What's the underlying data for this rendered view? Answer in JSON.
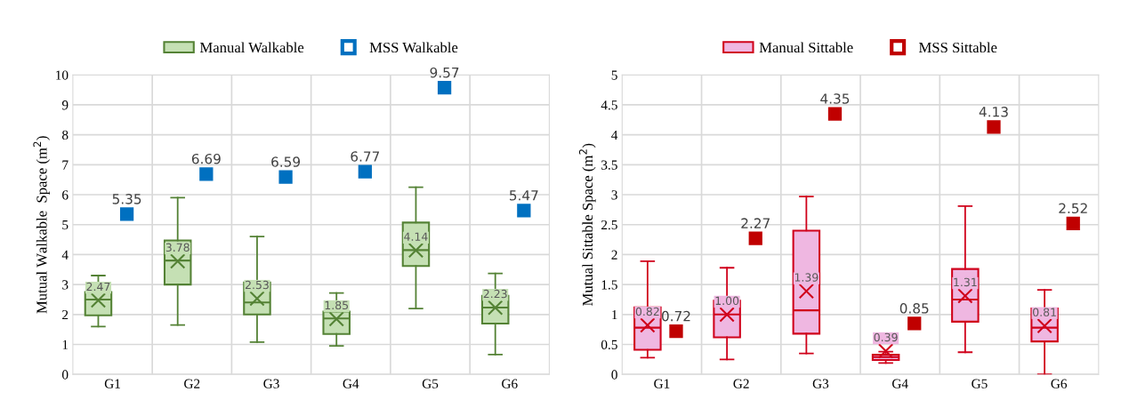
{
  "chart_data": [
    {
      "type": "box",
      "categories": [
        "G1",
        "G2",
        "G3",
        "G4",
        "G5",
        "G6"
      ],
      "ylabel": "Mutual Walkable  Space (m$^{2}$)",
      "ylim": [
        0,
        10
      ],
      "yticks": [
        0,
        1,
        2,
        3,
        4,
        5,
        6,
        7,
        8,
        9,
        10
      ],
      "grid": true,
      "legend": "top",
      "series": [
        {
          "name": "Manual Walkable",
          "type": "box",
          "color": "#548235",
          "colors": [
            "#c5e0b4",
            "#c5e0b4",
            "#c5e0b4",
            "#c5e0b4",
            "#c5e0b4",
            "#c5e0b4"
          ],
          "value_labels": [
            "2.47",
            "3.78",
            "2.53",
            "1.85",
            "4.14",
            "2.23"
          ],
          "boxes": [
            {
              "low": 1.6,
              "q1": 1.97,
              "median": 2.5,
              "q3": 2.75,
              "high": 3.3,
              "mean": 2.47
            },
            {
              "low": 1.65,
              "q1": 3.0,
              "median": 3.8,
              "q3": 4.47,
              "high": 5.9,
              "mean": 3.78
            },
            {
              "low": 1.08,
              "q1": 2.0,
              "median": 2.4,
              "q3": 3.07,
              "high": 4.6,
              "mean": 2.53
            },
            {
              "low": 0.95,
              "q1": 1.35,
              "median": 1.87,
              "q3": 2.1,
              "high": 2.72,
              "mean": 1.85
            },
            {
              "low": 2.2,
              "q1": 3.62,
              "median": 4.15,
              "q3": 5.07,
              "high": 6.25,
              "mean": 4.14
            },
            {
              "low": 0.66,
              "q1": 1.7,
              "median": 2.23,
              "q3": 2.62,
              "high": 3.37,
              "mean": 2.23
            }
          ]
        },
        {
          "name": "MSS Walkable",
          "type": "scatter",
          "marker": "square",
          "color": "#0070c0",
          "data_labels": true,
          "values": [
            5.35,
            6.69,
            6.59,
            6.77,
            9.57,
            5.47
          ]
        }
      ]
    },
    {
      "type": "box",
      "categories": [
        "G1",
        "G2",
        "G3",
        "G4",
        "G5",
        "G6"
      ],
      "ylabel": "Mutual Sittable Space (m$^{2}$)",
      "ylim": [
        0,
        5
      ],
      "yticks": [
        0,
        0.5,
        1,
        1.5,
        2,
        2.5,
        3,
        3.5,
        4,
        4.5,
        5
      ],
      "grid": true,
      "legend": "top",
      "series": [
        {
          "name": "Manual Sittable",
          "type": "box",
          "color": "#d0021b",
          "colors": [
            "#efb7e1",
            "#efb7e1",
            "#efb7e1",
            "#efb7e1",
            "#efb7e1",
            "#efb7e1"
          ],
          "value_labels": [
            "0.82",
            "1.00",
            "1.39",
            "0.39",
            "1.31",
            "0.81"
          ],
          "boxes": [
            {
              "low": 0.28,
              "q1": 0.41,
              "median": 0.78,
              "q3": 1.12,
              "high": 1.89,
              "mean": 0.82
            },
            {
              "low": 0.25,
              "q1": 0.62,
              "median": 1.0,
              "q3": 1.23,
              "high": 1.78,
              "mean": 1.0
            },
            {
              "low": 0.35,
              "q1": 0.68,
              "median": 1.07,
              "q3": 2.4,
              "high": 2.97,
              "mean": 1.39
            },
            {
              "low": 0.19,
              "q1": 0.24,
              "median": 0.29,
              "q3": 0.33,
              "high": 0.38,
              "mean": 0.39
            },
            {
              "low": 0.37,
              "q1": 0.88,
              "median": 1.25,
              "q3": 1.76,
              "high": 2.81,
              "mean": 1.31
            },
            {
              "low": 0.0,
              "q1": 0.55,
              "median": 0.78,
              "q3": 1.1,
              "high": 1.41,
              "mean": 0.81
            }
          ]
        },
        {
          "name": "MSS Sittable",
          "type": "scatter",
          "marker": "square",
          "color": "#c00000",
          "data_labels": true,
          "values": [
            0.72,
            2.27,
            4.35,
            0.85,
            4.13,
            2.52
          ]
        }
      ]
    }
  ]
}
